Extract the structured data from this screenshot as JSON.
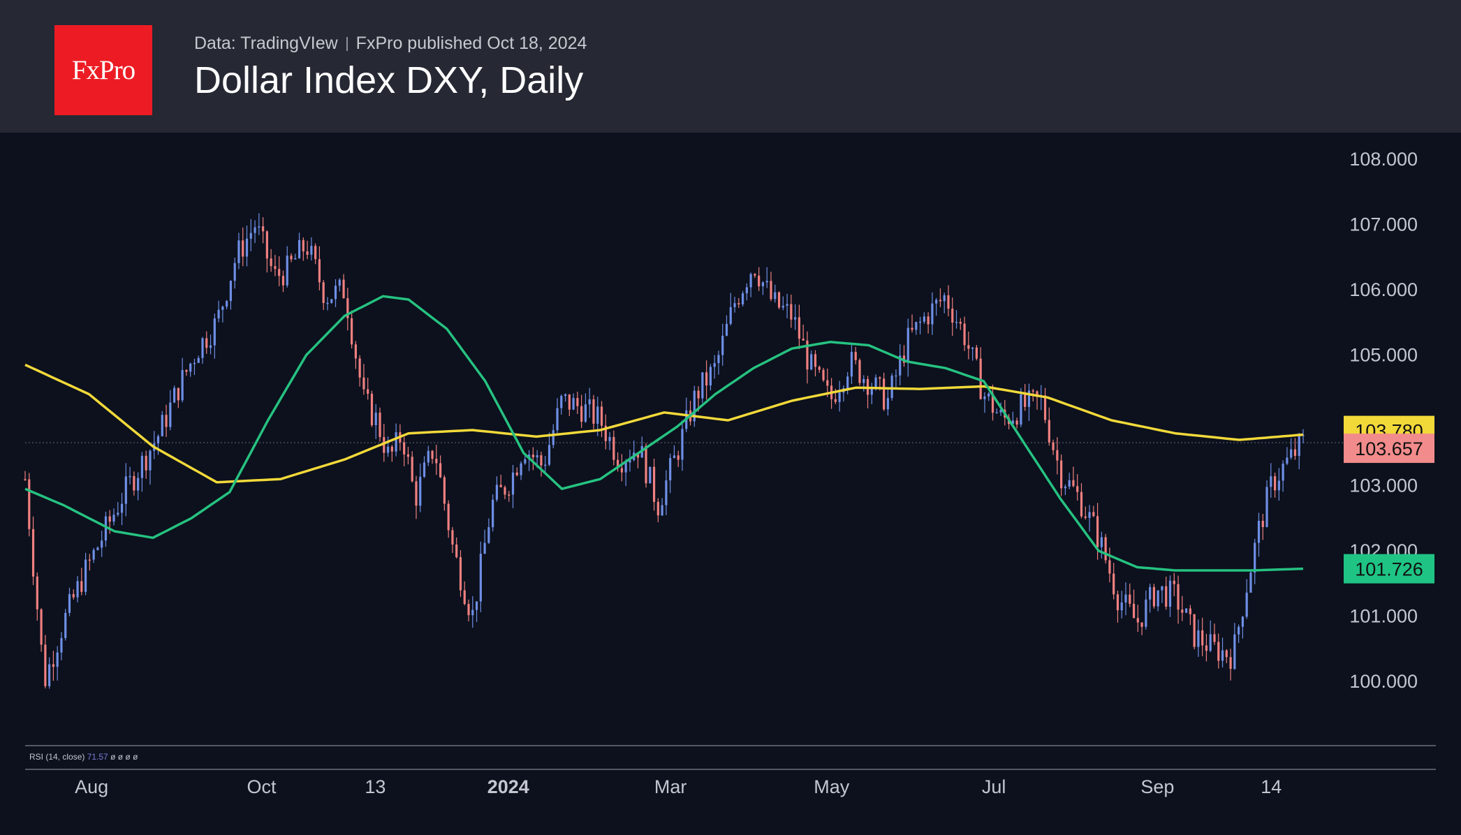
{
  "header": {
    "logo_text": "FxPro",
    "source": "Data: TradingVIew",
    "published": "FxPro published Oct 18, 2024",
    "title": "Dollar Index DXY, Daily"
  },
  "chart_data": {
    "type": "line",
    "title": "Dollar Index DXY, Daily",
    "ylim": [
      99.0,
      108.4
    ],
    "y_ticks": [
      "108.000",
      "107.000",
      "106.000",
      "105.000",
      "103.000",
      "102.000",
      "101.000",
      "100.000"
    ],
    "y_tick_values": [
      108,
      107,
      106,
      105,
      103,
      102,
      101,
      100
    ],
    "x_ticks": [
      "Aug",
      "Oct",
      "13",
      "2024",
      "Mar",
      "May",
      "Jul",
      "Sep",
      "14"
    ],
    "x_tick_bold": [
      false,
      false,
      false,
      true,
      false,
      false,
      false,
      false,
      false
    ],
    "x_tick_pos": [
      0.052,
      0.185,
      0.274,
      0.378,
      0.505,
      0.631,
      0.758,
      0.886,
      0.975
    ],
    "x_range": [
      0,
      1
    ],
    "series": [
      {
        "name": "MA long (yellow)",
        "color": "#f2d93a",
        "x": [
          0,
          0.05,
          0.1,
          0.15,
          0.2,
          0.25,
          0.3,
          0.35,
          0.4,
          0.45,
          0.5,
          0.55,
          0.6,
          0.65,
          0.7,
          0.75,
          0.8,
          0.85,
          0.9,
          0.95,
          1.0
        ],
        "y": [
          104.85,
          104.4,
          103.6,
          103.05,
          103.1,
          103.4,
          103.8,
          103.85,
          103.75,
          103.85,
          104.12,
          104.0,
          104.3,
          104.5,
          104.48,
          104.52,
          104.35,
          104.0,
          103.8,
          103.7,
          103.78
        ]
      },
      {
        "name": "MA short (green)",
        "color": "#26c281",
        "x": [
          0,
          0.03,
          0.07,
          0.1,
          0.13,
          0.16,
          0.19,
          0.22,
          0.25,
          0.28,
          0.3,
          0.33,
          0.36,
          0.39,
          0.42,
          0.45,
          0.48,
          0.51,
          0.54,
          0.57,
          0.6,
          0.63,
          0.66,
          0.69,
          0.72,
          0.75,
          0.78,
          0.81,
          0.84,
          0.87,
          0.9,
          0.93,
          0.96,
          1.0
        ],
        "y": [
          102.95,
          102.7,
          102.3,
          102.2,
          102.5,
          102.9,
          104.0,
          105.0,
          105.6,
          105.9,
          105.85,
          105.4,
          104.6,
          103.5,
          102.95,
          103.1,
          103.5,
          103.9,
          104.4,
          104.8,
          105.1,
          105.2,
          105.15,
          104.9,
          104.8,
          104.6,
          103.7,
          102.8,
          102.0,
          101.75,
          101.7,
          101.7,
          101.7,
          101.726
        ]
      }
    ],
    "price_path": {
      "x": [
        0,
        0.015,
        0.03,
        0.045,
        0.06,
        0.075,
        0.09,
        0.105,
        0.12,
        0.135,
        0.15,
        0.165,
        0.18,
        0.195,
        0.205,
        0.22,
        0.235,
        0.25,
        0.265,
        0.275,
        0.285,
        0.295,
        0.305,
        0.32,
        0.335,
        0.35,
        0.365,
        0.38,
        0.39,
        0.405,
        0.42,
        0.435,
        0.45,
        0.465,
        0.48,
        0.495,
        0.51,
        0.525,
        0.54,
        0.555,
        0.57,
        0.585,
        0.6,
        0.615,
        0.63,
        0.645,
        0.66,
        0.675,
        0.69,
        0.705,
        0.72,
        0.735,
        0.75,
        0.765,
        0.78,
        0.795,
        0.81,
        0.825,
        0.84,
        0.855,
        0.87,
        0.885,
        0.9,
        0.915,
        0.93,
        0.945,
        0.955,
        0.965,
        0.975,
        0.985,
        1.0
      ],
      "y": [
        103.1,
        100.0,
        100.9,
        101.6,
        102.2,
        102.8,
        103.3,
        103.8,
        104.5,
        105.1,
        105.5,
        106.5,
        107.0,
        106.2,
        106.3,
        106.7,
        105.9,
        106.0,
        104.3,
        104.0,
        103.4,
        103.8,
        102.8,
        103.6,
        102.0,
        101.0,
        102.7,
        103.1,
        103.6,
        103.3,
        104.3,
        104.2,
        104.0,
        103.4,
        103.6,
        102.7,
        103.5,
        104.4,
        104.8,
        105.8,
        106.4,
        105.8,
        105.6,
        104.8,
        104.3,
        104.9,
        104.6,
        104.3,
        105.2,
        105.6,
        105.9,
        105.3,
        104.4,
        104.0,
        104.2,
        104.3,
        103.2,
        102.8,
        102.2,
        101.3,
        100.9,
        101.4,
        101.3,
        100.7,
        100.5,
        100.4,
        101.4,
        102.3,
        103.0,
        103.3,
        103.657
      ]
    },
    "labels": [
      {
        "text": "103.780",
        "value": 103.78,
        "bg": "#f2d93a",
        "fg": "#111111"
      },
      {
        "text": "103.657",
        "value": 103.657,
        "bg": "#f28b8b",
        "fg": "#111111"
      },
      {
        "text": "101.726",
        "value": 101.726,
        "bg": "#1fc484",
        "fg": "#111111"
      }
    ],
    "last_price": 103.657,
    "up_color": "#6f8fe6",
    "down_color": "#f08080",
    "rsi_label": "RSI (14, close)",
    "rsi_value": "71.57",
    "rsi_extras": "ø ø ø ø"
  }
}
